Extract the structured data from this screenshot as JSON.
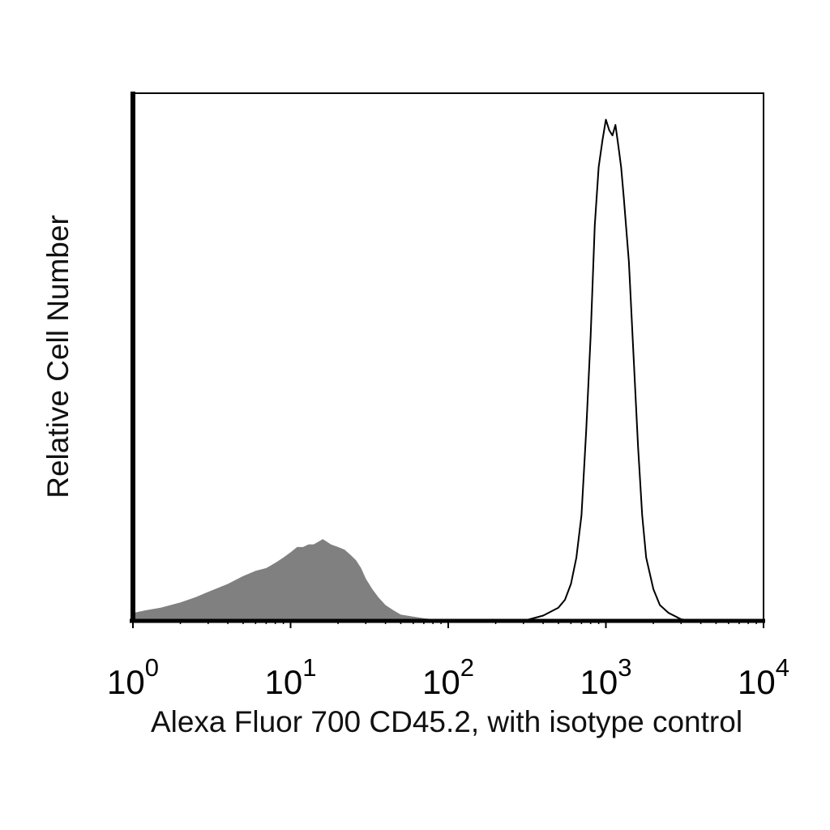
{
  "chart_data": {
    "type": "area",
    "xscale": "log",
    "xlim": [
      1,
      10000
    ],
    "ylim": [
      0,
      100
    ],
    "ylabel": "Relative Cell Number",
    "xlabel": "Alexa Fluor 700 CD45.2, with isotype control",
    "xticks": [
      {
        "value": 1,
        "base": "10",
        "exp": "0"
      },
      {
        "value": 10,
        "base": "10",
        "exp": "1"
      },
      {
        "value": 100,
        "base": "10",
        "exp": "2"
      },
      {
        "value": 1000,
        "base": "10",
        "exp": "3"
      },
      {
        "value": 10000,
        "base": "10",
        "exp": "4"
      }
    ],
    "series": [
      {
        "fill": "#808080",
        "stroke": "none",
        "x": [
          1,
          1.2,
          1.5,
          2,
          2.5,
          3,
          4,
          5,
          6,
          7,
          8,
          9,
          10,
          11,
          12,
          13,
          14,
          15,
          16,
          17,
          18,
          20,
          22,
          24,
          26,
          28,
          30,
          33,
          36,
          40,
          45,
          50,
          60,
          70,
          80,
          100,
          120,
          150
        ],
        "y": [
          1.5,
          2,
          2.5,
          3.5,
          4.5,
          5.5,
          7,
          8.5,
          9.5,
          10,
          11,
          12,
          13,
          14,
          14,
          14.5,
          14.5,
          15,
          15.5,
          15,
          14.5,
          14,
          13.5,
          12.5,
          11.5,
          10,
          8,
          6,
          4.5,
          3,
          2,
          1.2,
          0.8,
          0.5,
          0.3,
          0.2,
          0.1,
          0
        ]
      },
      {
        "fill": "none",
        "stroke": "#000000",
        "x": [
          300,
          400,
          500,
          550,
          600,
          650,
          700,
          750,
          800,
          850,
          900,
          950,
          1000,
          1050,
          1100,
          1150,
          1200,
          1250,
          1300,
          1400,
          1500,
          1600,
          1700,
          1800,
          2000,
          2200,
          2500,
          3000,
          3500
        ],
        "y": [
          0,
          1,
          2.5,
          4,
          7,
          12,
          20,
          36,
          54,
          75,
          86,
          91,
          95,
          93,
          92,
          94,
          90,
          86,
          80,
          68,
          50,
          33,
          20,
          12,
          6,
          3,
          1.5,
          0.3,
          0
        ]
      }
    ]
  }
}
